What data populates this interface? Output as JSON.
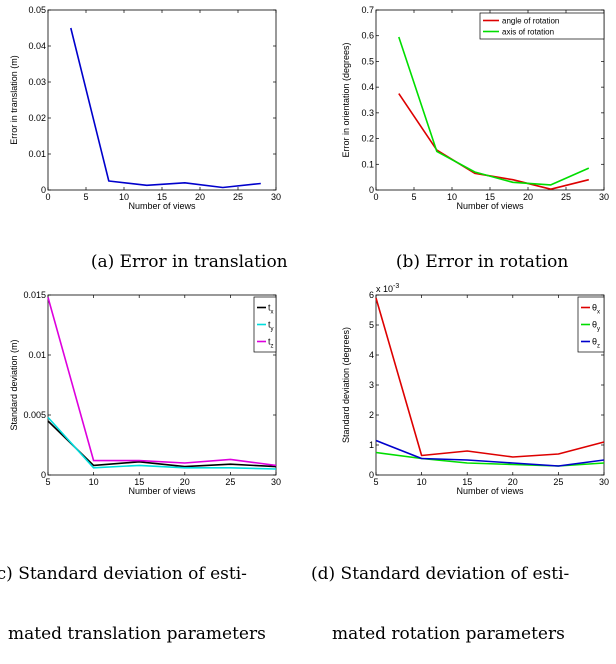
{
  "chart_data": [
    {
      "type": "line",
      "xlabel": "Number of views",
      "ylabel": "Error in translation (m)",
      "xlim": [
        0,
        30
      ],
      "ylim": [
        0,
        0.05
      ],
      "xticks": [
        0,
        5,
        10,
        15,
        20,
        25,
        30
      ],
      "xtick_labels": [
        "0",
        "5",
        "10",
        "15",
        "20",
        "25",
        "30"
      ],
      "yticks": [
        0,
        0.01,
        0.02,
        0.03,
        0.04,
        0.05
      ],
      "ytick_labels": [
        "0",
        "0.01",
        "0.02",
        "0.03",
        "0.04",
        "0.05"
      ],
      "grid": false,
      "series": [
        {
          "color": "#0000cc",
          "x": [
            3,
            8,
            13,
            18,
            23,
            28
          ],
          "y": [
            0.045,
            0.0025,
            0.0013,
            0.002,
            0.0007,
            0.0018
          ]
        }
      ]
    },
    {
      "type": "line",
      "xlabel": "Number of views",
      "ylabel": "Error in orientation (degrees)",
      "xlim": [
        0,
        30
      ],
      "ylim": [
        0,
        0.7
      ],
      "xticks": [
        0,
        5,
        10,
        15,
        20,
        25,
        30
      ],
      "xtick_labels": [
        "0",
        "5",
        "10",
        "15",
        "20",
        "25",
        "30"
      ],
      "yticks": [
        0,
        0.1,
        0.2,
        0.3,
        0.4,
        0.5,
        0.6,
        0.7
      ],
      "ytick_labels": [
        "0",
        "0.1",
        "0.2",
        "0.3",
        "0.4",
        "0.5",
        "0.6",
        "0.7"
      ],
      "grid": false,
      "legend": "top-right",
      "series": [
        {
          "name": "angle of rotation",
          "color": "#dd0000",
          "x": [
            3,
            8,
            13,
            18,
            23,
            28
          ],
          "y": [
            0.375,
            0.155,
            0.065,
            0.04,
            0.003,
            0.04
          ]
        },
        {
          "name": "axis of rotation",
          "color": "#00dd00",
          "x": [
            3,
            8,
            13,
            18,
            23,
            28
          ],
          "y": [
            0.595,
            0.15,
            0.07,
            0.03,
            0.02,
            0.085
          ]
        }
      ]
    },
    {
      "type": "line",
      "xlabel": "Number of views",
      "ylabel": "Standard deviation (m)",
      "xlim": [
        5,
        30
      ],
      "ylim": [
        0,
        0.015
      ],
      "xticks": [
        5,
        10,
        15,
        20,
        25,
        30
      ],
      "xtick_labels": [
        "5",
        "10",
        "15",
        "20",
        "25",
        "30"
      ],
      "yticks": [
        0,
        0.005,
        0.01,
        0.015
      ],
      "ytick_labels": [
        "0",
        "0.005",
        "0.01",
        "0.015"
      ],
      "grid": false,
      "legend": "top-right",
      "series": [
        {
          "name": "t",
          "sub": "x",
          "color": "#000000",
          "x": [
            5,
            10,
            15,
            20,
            25,
            30
          ],
          "y": [
            0.0045,
            0.0008,
            0.0011,
            0.0007,
            0.0009,
            0.0007
          ]
        },
        {
          "name": "t",
          "sub": "y",
          "color": "#00dddd",
          "x": [
            5,
            10,
            15,
            20,
            25,
            30
          ],
          "y": [
            0.0048,
            0.0006,
            0.0008,
            0.0006,
            0.0006,
            0.0005
          ]
        },
        {
          "name": "t",
          "sub": "z",
          "color": "#dd00dd",
          "x": [
            5,
            10,
            15,
            20,
            25,
            30
          ],
          "y": [
            0.0148,
            0.0012,
            0.0012,
            0.001,
            0.0013,
            0.0008
          ]
        }
      ]
    },
    {
      "type": "line",
      "xlabel": "Number of views",
      "ylabel": "Standard deviation (degrees)",
      "xlim": [
        5,
        30
      ],
      "ylim": [
        0,
        6
      ],
      "scale_label": "x 10",
      "scale_exponent": "-3",
      "xticks": [
        5,
        10,
        15,
        20,
        25,
        30
      ],
      "xtick_labels": [
        "5",
        "10",
        "15",
        "20",
        "25",
        "30"
      ],
      "yticks": [
        0,
        1,
        2,
        3,
        4,
        5,
        6
      ],
      "ytick_labels": [
        "0",
        "1",
        "2",
        "3",
        "4",
        "5",
        "6"
      ],
      "grid": false,
      "legend": "top-right",
      "series": [
        {
          "name": "θ",
          "sub": "x",
          "color": "#dd0000",
          "x": [
            5,
            10,
            15,
            20,
            25,
            30
          ],
          "y": [
            5.9,
            0.65,
            0.8,
            0.6,
            0.7,
            1.1
          ]
        },
        {
          "name": "θ",
          "sub": "y",
          "color": "#00dd00",
          "x": [
            5,
            10,
            15,
            20,
            25,
            30
          ],
          "y": [
            0.75,
            0.55,
            0.4,
            0.35,
            0.3,
            0.4
          ]
        },
        {
          "name": "θ",
          "sub": "z",
          "color": "#0000cc",
          "x": [
            5,
            10,
            15,
            20,
            25,
            30
          ],
          "y": [
            1.15,
            0.55,
            0.5,
            0.4,
            0.3,
            0.5
          ]
        }
      ]
    }
  ],
  "captions": [
    {
      "label": "(a) Error in translation"
    },
    {
      "label": "(b) Error in rotation"
    },
    {
      "label": "(c) Standard deviation of esti-",
      "label2": "mated translation parameters"
    },
    {
      "label": "(d) Standard deviation of esti-",
      "label2": "mated rotation parameters"
    }
  ]
}
